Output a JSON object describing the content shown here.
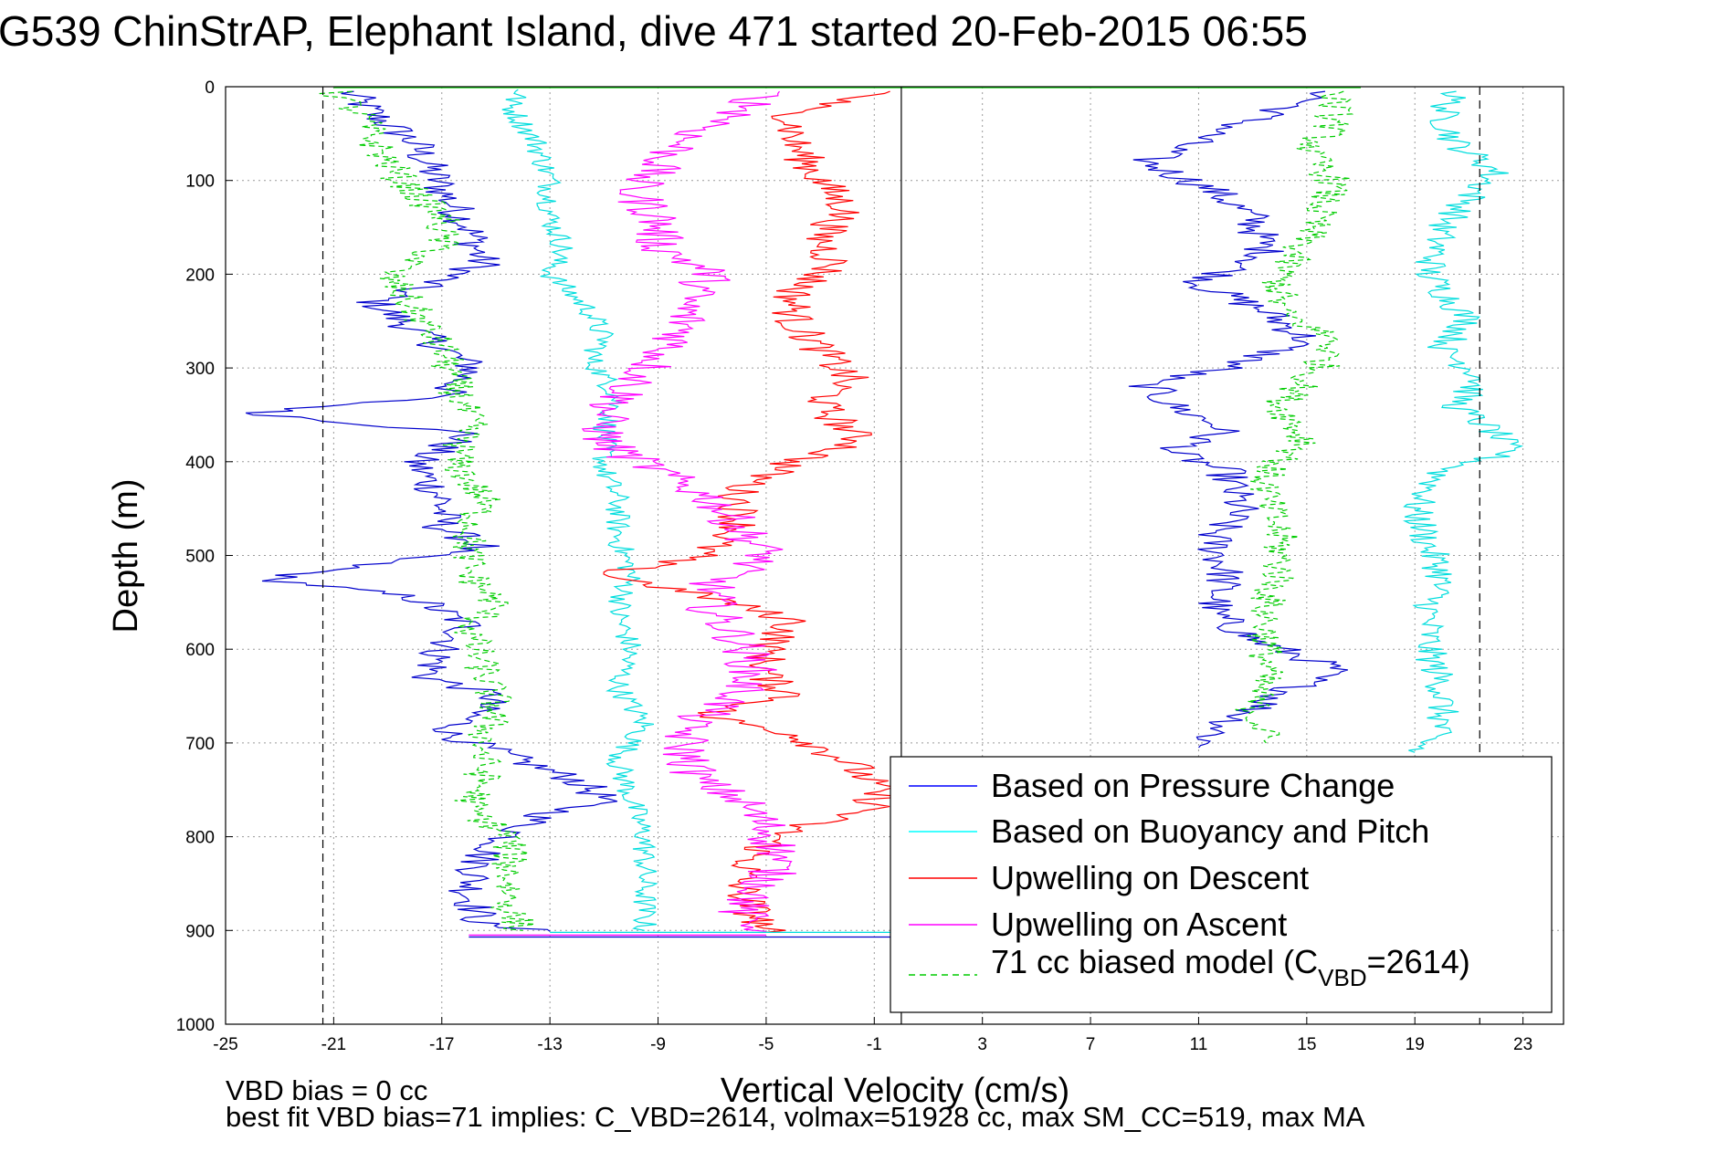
{
  "chart_data": {
    "type": "line",
    "title": "G539 ChinStrAP, Elephant Island, dive 471 started 20-Feb-2015 06:55",
    "xlabel": "Vertical Velocity (cm/s)",
    "ylabel": "Depth (m)",
    "xlim": [
      -25,
      24.5
    ],
    "ylim": [
      0,
      1000
    ],
    "y_reversed": true,
    "grid": true,
    "xticks": [
      "-25",
      "-21",
      "-17",
      "-13",
      "-9",
      "-5",
      "-1",
      "3",
      "7",
      "11",
      "15",
      "19",
      "23"
    ],
    "yticks": [
      "0",
      "100",
      "200",
      "300",
      "400",
      "500",
      "600",
      "700",
      "800",
      "900",
      "1000"
    ],
    "reference_lines": {
      "solid_x": [
        0
      ],
      "dashed_x": [
        -21.4,
        21.4
      ]
    },
    "legend_position": "lower-right",
    "legend": [
      {
        "label": "Based on Pressure Change",
        "color": "#0000ff",
        "dash": false
      },
      {
        "label": "Based on Buoyancy and Pitch",
        "color": "#00ffff",
        "dash": false
      },
      {
        "label": "Upwelling on Descent",
        "color": "#ff0000",
        "dash": false
      },
      {
        "label": "Upwelling on Ascent",
        "color": "#ff00ff",
        "dash": false
      },
      {
        "label_main": "71 cc biased model (C",
        "label_sub": "VBD",
        "label_tail": "=2614)",
        "color": "#00cc00",
        "dash": true
      }
    ],
    "series": [
      {
        "key": "pressure_desc",
        "color": "#0000cc",
        "dash": false,
        "noise": 0.5,
        "points": [
          [
            -20.5,
            5
          ],
          [
            -19.5,
            30
          ],
          [
            -18,
            60
          ],
          [
            -17,
            110
          ],
          [
            -16,
            150
          ],
          [
            -15.5,
            190
          ],
          [
            -18,
            215
          ],
          [
            -19.5,
            230
          ],
          [
            -18,
            260
          ],
          [
            -15.8,
            300
          ],
          [
            -17,
            330
          ],
          [
            -24,
            348
          ],
          [
            -16,
            370
          ],
          [
            -18,
            400
          ],
          [
            -17,
            440
          ],
          [
            -17,
            470
          ],
          [
            -15.5,
            490
          ],
          [
            -21,
            515
          ],
          [
            -23.5,
            525
          ],
          [
            -18,
            545
          ],
          [
            -16,
            575
          ],
          [
            -17,
            600
          ],
          [
            -17.5,
            630
          ],
          [
            -15,
            650
          ],
          [
            -16.8,
            690
          ],
          [
            -14,
            720
          ],
          [
            -12,
            740
          ],
          [
            -11,
            760
          ],
          [
            -13.5,
            780
          ],
          [
            -15.5,
            820
          ],
          [
            -16,
            860
          ],
          [
            -15.5,
            895
          ],
          [
            -13,
            901
          ]
        ]
      },
      {
        "key": "pressure_asc",
        "color": "#0000cc",
        "dash": false,
        "noise": 0.5,
        "points": [
          [
            16,
            5
          ],
          [
            14,
            25
          ],
          [
            11.5,
            50
          ],
          [
            9,
            80
          ],
          [
            11.5,
            110
          ],
          [
            13,
            140
          ],
          [
            13.5,
            180
          ],
          [
            11,
            210
          ],
          [
            13.5,
            240
          ],
          [
            15,
            270
          ],
          [
            12,
            300
          ],
          [
            9,
            315
          ],
          [
            10,
            340
          ],
          [
            12,
            365
          ],
          [
            10,
            390
          ],
          [
            12,
            410
          ],
          [
            12.5,
            450
          ],
          [
            11.5,
            480
          ],
          [
            12,
            520
          ],
          [
            11.5,
            560
          ],
          [
            13,
            590
          ],
          [
            16,
            620
          ],
          [
            14,
            650
          ],
          [
            12,
            680
          ],
          [
            11,
            705
          ]
        ]
      },
      {
        "key": "buoyancy_desc",
        "color": "#00dddd",
        "dash": false,
        "noise": 0.3,
        "points": [
          [
            -14,
            3
          ],
          [
            -14.5,
            20
          ],
          [
            -13.5,
            60
          ],
          [
            -13,
            100
          ],
          [
            -13,
            140
          ],
          [
            -12.5,
            170
          ],
          [
            -13,
            200
          ],
          [
            -11.5,
            240
          ],
          [
            -11,
            270
          ],
          [
            -11.5,
            290
          ],
          [
            -10.5,
            330
          ],
          [
            -11,
            370
          ],
          [
            -11,
            410
          ],
          [
            -10.5,
            440
          ],
          [
            -10.5,
            480
          ],
          [
            -10,
            520
          ],
          [
            -10.5,
            560
          ],
          [
            -10,
            600
          ],
          [
            -10.5,
            640
          ],
          [
            -9.5,
            680
          ],
          [
            -10.5,
            720
          ],
          [
            -10,
            760
          ],
          [
            -9.5,
            800
          ],
          [
            -9.5,
            850
          ],
          [
            -9.5,
            900
          ]
        ]
      },
      {
        "key": "buoyancy_asc",
        "color": "#00dddd",
        "dash": false,
        "noise": 0.4,
        "points": [
          [
            20.5,
            5
          ],
          [
            20,
            30
          ],
          [
            20.5,
            60
          ],
          [
            22,
            90
          ],
          [
            21,
            120
          ],
          [
            20,
            150
          ],
          [
            19.5,
            200
          ],
          [
            21,
            250
          ],
          [
            20,
            280
          ],
          [
            21.5,
            310
          ],
          [
            20.5,
            340
          ],
          [
            22,
            370
          ],
          [
            22.5,
            390
          ],
          [
            20,
            410
          ],
          [
            19,
            450
          ],
          [
            19.5,
            490
          ],
          [
            20,
            520
          ],
          [
            19.5,
            560
          ],
          [
            19.5,
            600
          ],
          [
            20,
            640
          ],
          [
            20,
            680
          ],
          [
            19,
            710
          ]
        ]
      },
      {
        "key": "upwell_desc",
        "color": "#ff0000",
        "dash": false,
        "noise": 0.5,
        "points": [
          [
            -0.5,
            5
          ],
          [
            -4,
            25
          ],
          [
            -4,
            60
          ],
          [
            -3,
            100
          ],
          [
            -2,
            130
          ],
          [
            -3,
            160
          ],
          [
            -2.5,
            190
          ],
          [
            -4,
            220
          ],
          [
            -4,
            250
          ],
          [
            -3,
            280
          ],
          [
            -2,
            310
          ],
          [
            -3,
            340
          ],
          [
            -2,
            365
          ],
          [
            -1.5,
            380
          ],
          [
            -4,
            400
          ],
          [
            -6,
            430
          ],
          [
            -6,
            470
          ],
          [
            -7.5,
            500
          ],
          [
            -11,
            520
          ],
          [
            -7,
            545
          ],
          [
            -4,
            570
          ],
          [
            -5,
            600
          ],
          [
            -5,
            630
          ],
          [
            -4,
            650
          ],
          [
            -7.5,
            670
          ],
          [
            -4,
            690
          ],
          [
            -2,
            720
          ],
          [
            -1,
            745
          ],
          [
            -1,
            770
          ],
          [
            -4,
            790
          ],
          [
            -5.5,
            820
          ],
          [
            -6,
            850
          ],
          [
            -5.5,
            880
          ],
          [
            -5,
            902
          ]
        ]
      },
      {
        "key": "upwell_asc",
        "color": "#ff00ff",
        "dash": false,
        "noise": 0.6,
        "points": [
          [
            -5,
            5
          ],
          [
            -6,
            30
          ],
          [
            -8,
            55
          ],
          [
            -9,
            85
          ],
          [
            -10,
            110
          ],
          [
            -9,
            140
          ],
          [
            -9,
            170
          ],
          [
            -7,
            200
          ],
          [
            -8,
            230
          ],
          [
            -8,
            260
          ],
          [
            -9,
            290
          ],
          [
            -10,
            320
          ],
          [
            -11,
            350
          ],
          [
            -11,
            380
          ],
          [
            -9,
            410
          ],
          [
            -7,
            440
          ],
          [
            -6,
            470
          ],
          [
            -5,
            500
          ],
          [
            -7,
            530
          ],
          [
            -7,
            560
          ],
          [
            -6,
            590
          ],
          [
            -5.5,
            620
          ],
          [
            -6,
            650
          ],
          [
            -8,
            680
          ],
          [
            -8,
            710
          ],
          [
            -7.5,
            740
          ],
          [
            -6,
            760
          ],
          [
            -5,
            790
          ],
          [
            -4.5,
            820
          ],
          [
            -5,
            850
          ],
          [
            -6,
            880
          ],
          [
            -5,
            901
          ]
        ]
      },
      {
        "key": "model_desc",
        "color": "#00cc00",
        "dash": true,
        "noise": 0.45,
        "points": [
          [
            -21,
            5
          ],
          [
            -20,
            30
          ],
          [
            -19.5,
            60
          ],
          [
            -18.5,
            100
          ],
          [
            -17,
            140
          ],
          [
            -17,
            170
          ],
          [
            -19,
            200
          ],
          [
            -18,
            240
          ],
          [
            -17,
            280
          ],
          [
            -16.5,
            320
          ],
          [
            -16,
            360
          ],
          [
            -16.5,
            400
          ],
          [
            -15.5,
            440
          ],
          [
            -16,
            480
          ],
          [
            -16,
            520
          ],
          [
            -15,
            550
          ],
          [
            -16,
            580
          ],
          [
            -15.5,
            620
          ],
          [
            -15,
            660
          ],
          [
            -15.5,
            700
          ],
          [
            -15.5,
            740
          ],
          [
            -16,
            770
          ],
          [
            -14.5,
            800
          ],
          [
            -14.5,
            840
          ],
          [
            -14.5,
            880
          ],
          [
            -14,
            900
          ]
        ]
      },
      {
        "key": "model_asc",
        "color": "#00cc00",
        "dash": true,
        "noise": 0.45,
        "points": [
          [
            16,
            5
          ],
          [
            16,
            40
          ],
          [
            15,
            70
          ],
          [
            16,
            100
          ],
          [
            15.5,
            130
          ],
          [
            15,
            160
          ],
          [
            14,
            200
          ],
          [
            14,
            240
          ],
          [
            16,
            270
          ],
          [
            15.5,
            300
          ],
          [
            14,
            340
          ],
          [
            15,
            380
          ],
          [
            13.5,
            410
          ],
          [
            13.5,
            440
          ],
          [
            14,
            480
          ],
          [
            14,
            520
          ],
          [
            13.5,
            550
          ],
          [
            13.5,
            590
          ],
          [
            13.5,
            620
          ],
          [
            13,
            660
          ],
          [
            13.5,
            700
          ]
        ]
      }
    ],
    "spikes": [
      {
        "color": "#00cc00",
        "depth": 1,
        "x1": -21,
        "x2": 17
      },
      {
        "color": "#0000cc",
        "depth": 907,
        "x1": -16,
        "x2": 0
      },
      {
        "color": "#ff00ff",
        "depth": 905,
        "x1": -16,
        "x2": -5
      },
      {
        "color": "#00dddd",
        "depth": 902,
        "x1": -13,
        "x2": 0
      }
    ]
  },
  "footer": {
    "line1": "VBD bias = 0 cc",
    "line2": "best fit VBD bias=71 implies: C_VBD=2614, volmax=51928 cc, max SM_CC=519, max MA"
  }
}
